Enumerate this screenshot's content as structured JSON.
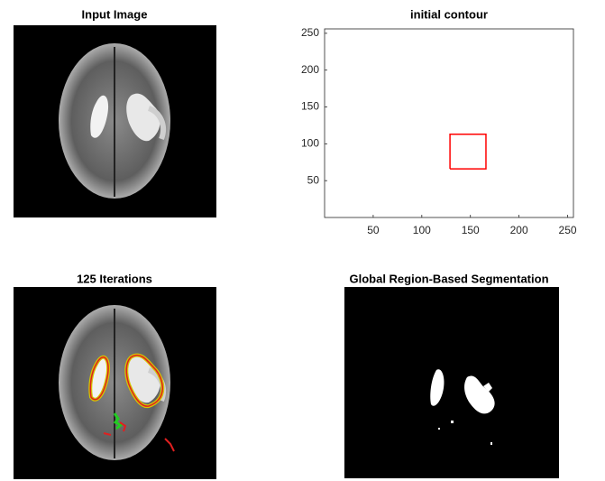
{
  "chart_data": [
    {
      "type": "image",
      "title": "Input Image"
    },
    {
      "type": "line",
      "title": "initial contour",
      "xlim": [
        0,
        256
      ],
      "ylim": [
        0,
        256
      ],
      "xticks": [
        50,
        100,
        150,
        200,
        250
      ],
      "yticks": [
        50,
        100,
        150,
        200,
        250
      ],
      "series": [
        {
          "color": "#ff0000",
          "x": [
            129,
            166,
            166,
            129,
            129
          ],
          "values": [
            66,
            66,
            113,
            113,
            66
          ]
        }
      ]
    },
    {
      "type": "image",
      "title": "125 Iterations"
    },
    {
      "type": "image",
      "title": "Global Region-Based Segmentation"
    }
  ]
}
